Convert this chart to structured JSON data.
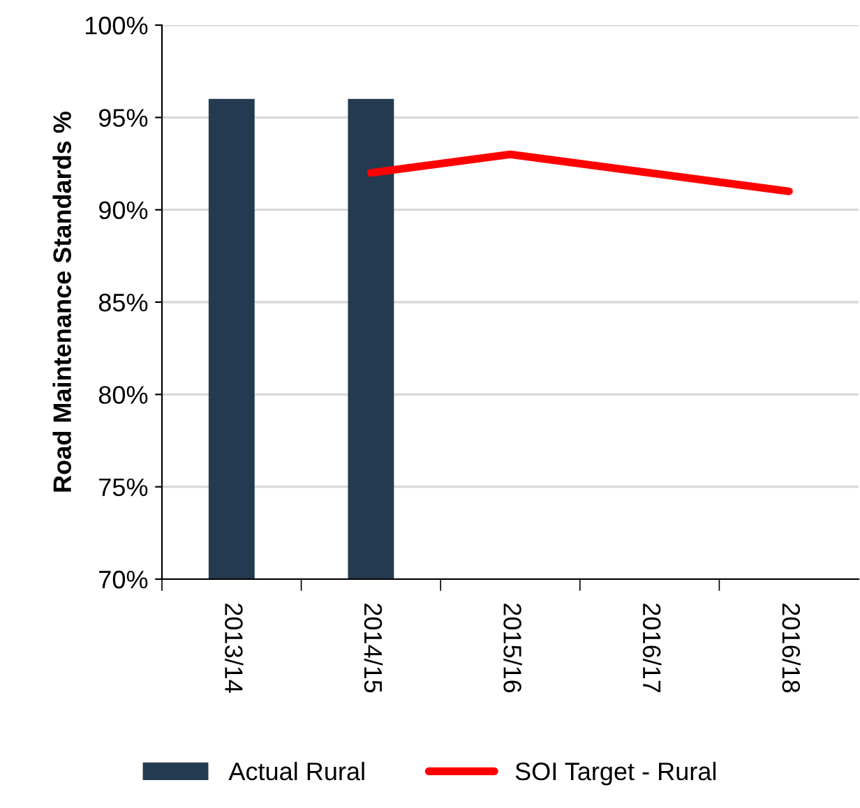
{
  "chart_data": {
    "type": "bar",
    "ylabel": "Road Maintenance Standards %",
    "categories": [
      "2013/14",
      "2014/15",
      "2015/16",
      "2016/17",
      "2016/18"
    ],
    "series": [
      {
        "name": "Actual Rural",
        "color": "#243a51",
        "values": [
          96,
          96,
          null,
          null,
          null
        ]
      },
      {
        "name": "SOI Target - Rural",
        "type": "line",
        "color": "#ff0000",
        "values": [
          null,
          92,
          93,
          92,
          91
        ]
      }
    ],
    "ylim": [
      70,
      100
    ],
    "yticks": [
      {
        "value": 70,
        "label": "70%"
      },
      {
        "value": 75,
        "label": "75%"
      },
      {
        "value": 80,
        "label": "80%"
      },
      {
        "value": 85,
        "label": "85%"
      },
      {
        "value": 90,
        "label": "90%"
      },
      {
        "value": 95,
        "label": "95%"
      },
      {
        "value": 100,
        "label": "100%"
      }
    ],
    "grid": "y",
    "legend": "bottom",
    "marker": "none",
    "line_style": "solid"
  }
}
